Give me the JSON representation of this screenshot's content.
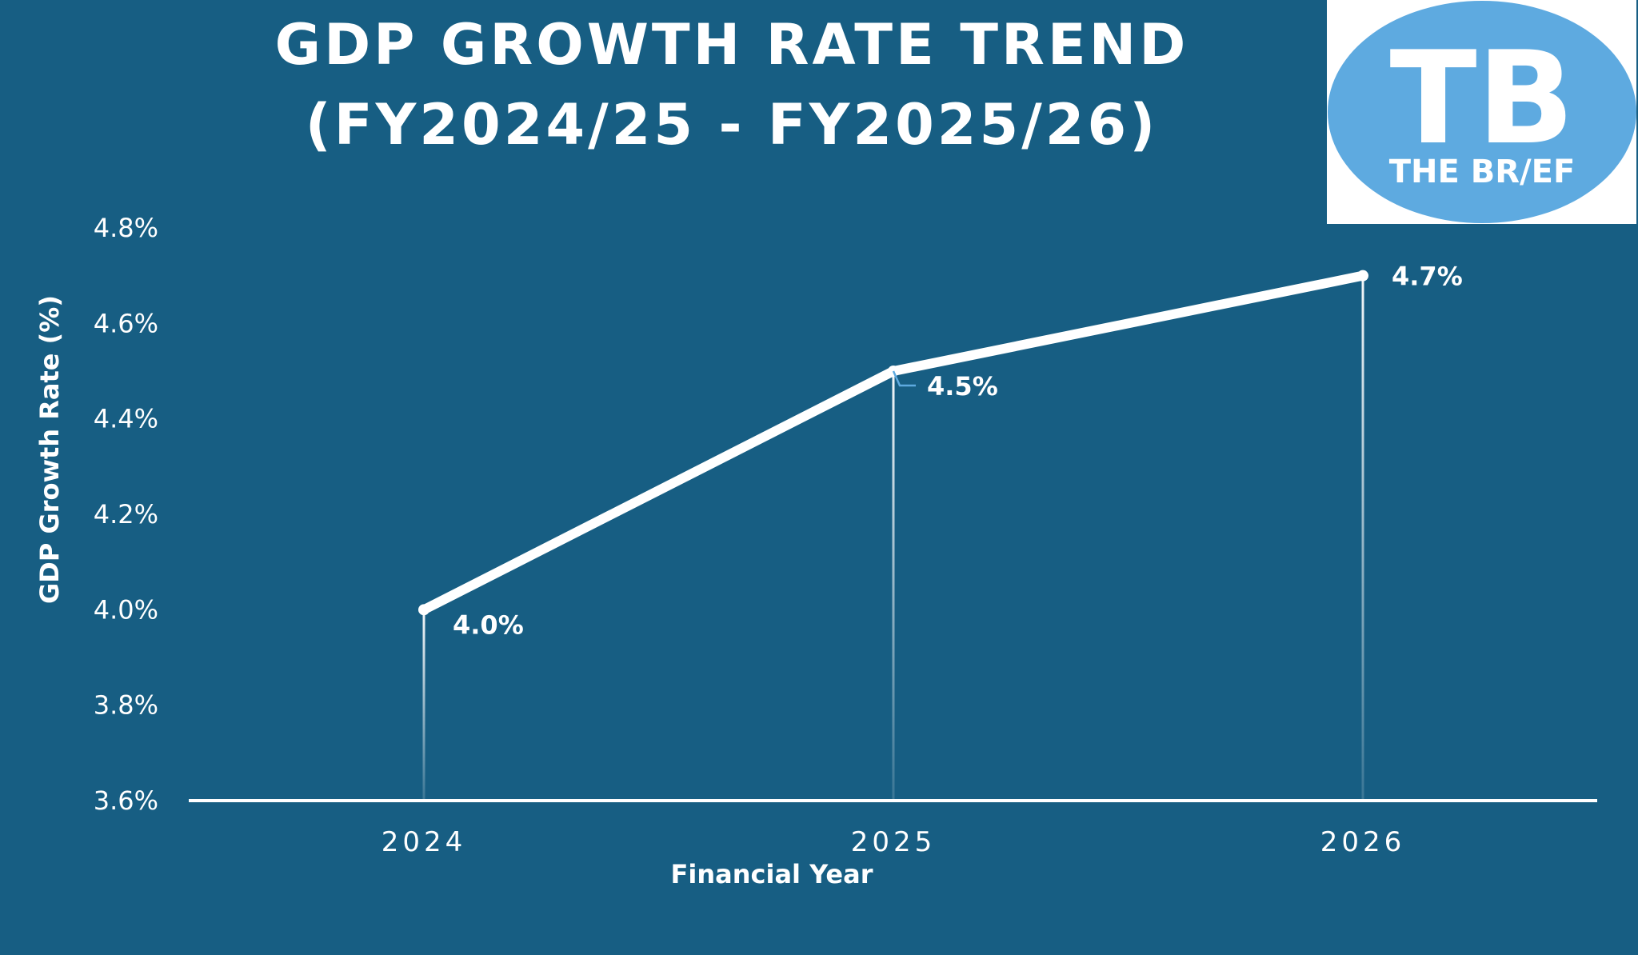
{
  "logo": {
    "monogram": "TB",
    "name": "THE BR/EF",
    "colors": {
      "background": "#ffffff",
      "ellipse": "#5eaae0",
      "text": "#ffffff"
    }
  },
  "colors": {
    "background": "#175e83",
    "line": "#ffffff",
    "text": "#ffffff",
    "leader": "#5eaae0"
  },
  "chart_data": {
    "type": "line",
    "title_lines": [
      "GDP GROWTH RATE TREND",
      "(FY2024/25 - FY2025/26)"
    ],
    "xlabel": "Financial Year",
    "ylabel": "GDP Growth Rate (%)",
    "categories": [
      "2024",
      "2025",
      "2026"
    ],
    "series": [
      {
        "values": [
          4.0,
          4.5,
          4.7
        ],
        "labels": [
          "4.0%",
          "4.5%",
          "4.7%"
        ]
      }
    ],
    "ylim": [
      3.6,
      4.8
    ],
    "yticks": [
      3.6,
      3.8,
      4.0,
      4.2,
      4.4,
      4.6,
      4.8
    ],
    "ytick_labels": [
      "3.6%",
      "3.8%",
      "4.0%",
      "4.2%",
      "4.4%",
      "4.6%",
      "4.8%"
    ],
    "grid": false,
    "legend": "none"
  }
}
